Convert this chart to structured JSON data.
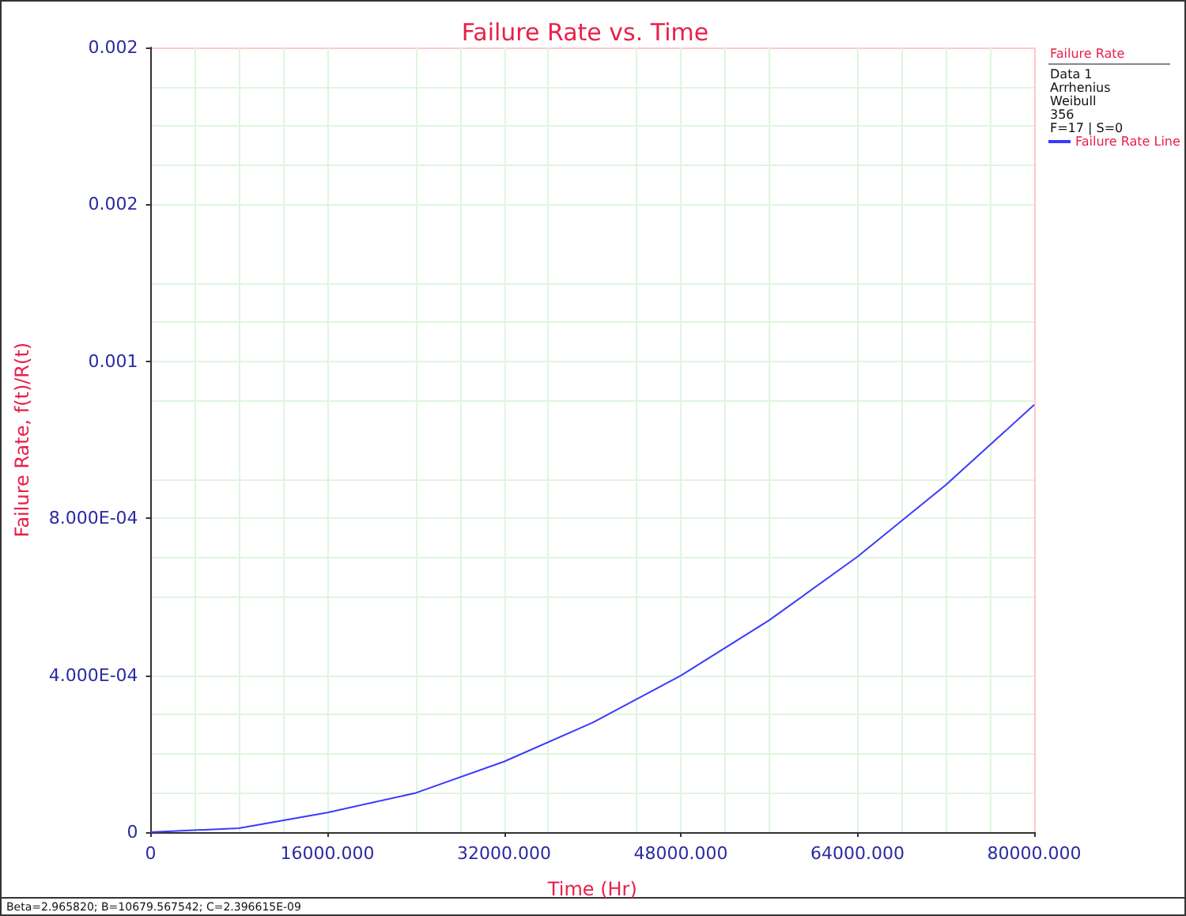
{
  "chart_data": {
    "type": "line",
    "title": "Failure Rate vs. Time",
    "xlabel": "Time (Hr)",
    "ylabel": "Failure Rate, f(t)/R(t)",
    "legend_title": "Failure Rate",
    "x": [
      0,
      8000,
      16000,
      24000,
      32000,
      40000,
      48000,
      56000,
      64000,
      72000,
      80000
    ],
    "series": [
      {
        "name": "Failure Rate Line",
        "color": "#3a3aff",
        "values": [
          0,
          1e-05,
          5e-05,
          0.0001,
          0.00018,
          0.000279,
          0.000399,
          0.00054,
          0.000702,
          0.000885,
          0.001089
        ]
      }
    ],
    "xlim": [
      0,
      80000
    ],
    "ylim": [
      0,
      0.002
    ],
    "xticks": [
      0,
      {
        "value": 16000,
        "label": "16000.000"
      },
      {
        "value": 32000,
        "label": "32000.000"
      },
      {
        "value": 48000,
        "label": "48000.000"
      },
      {
        "value": 64000,
        "label": "64000.000"
      },
      {
        "value": 80000,
        "label": "80000.000"
      }
    ],
    "yticks": [
      0,
      {
        "value": 0.0004,
        "label": "4.000E-04"
      },
      {
        "value": 0.0008,
        "label": "8.000E-04"
      },
      {
        "value": 0.0012,
        "label": "0.001"
      },
      {
        "value": 0.0016,
        "label": "0.002"
      },
      {
        "value": 0.002,
        "label": "0.002"
      }
    ],
    "grid": true,
    "legend": "top right",
    "marker": "none",
    "line_style": "solid",
    "annotations": [
      "Data 1",
      "Arrhenius",
      "Weibull",
      "356",
      "F=17 | S=0",
      "Beta=2.965820; B=10679.567542; C=2.396615E-09"
    ]
  }
}
